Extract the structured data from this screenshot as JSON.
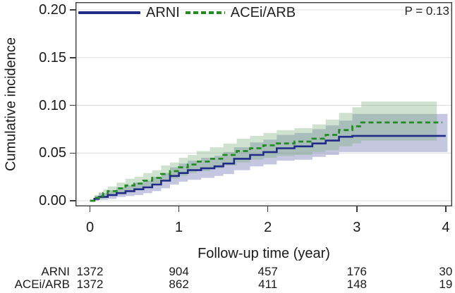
{
  "figure": {
    "p_value": "P = 0.13",
    "y_axis_title": "Cumulative incidence",
    "x_axis_title": "Follow-up time (year)"
  },
  "chart_data": {
    "type": "line",
    "subtype": "cumulative-incidence-step-curves-with-confidence-bands",
    "title": "",
    "xlabel": "Follow-up time (year)",
    "ylabel": "Cumulative incidence",
    "xlim": [
      0,
      4.07
    ],
    "ylim": [
      0,
      0.208
    ],
    "grid": "horizontal",
    "legend_position": "top-inside",
    "annotation": "P = 0.13",
    "x_ticks": [
      {
        "value": 0,
        "label": "0"
      },
      {
        "value": 1,
        "label": "1"
      },
      {
        "value": 2,
        "label": "2"
      },
      {
        "value": 3,
        "label": "3"
      },
      {
        "value": 4,
        "label": "4"
      }
    ],
    "y_ticks": [
      {
        "value": 0.2,
        "label": "0.20"
      },
      {
        "value": 0.15,
        "label": "0.15"
      },
      {
        "value": 0.1,
        "label": "0.10"
      },
      {
        "value": 0.05,
        "label": "0.05"
      },
      {
        "value": 0.0,
        "label": "0.00"
      }
    ],
    "colors": {
      "arni_line": "#202a87",
      "arni_band": "rgba(90,94,168,0.35)",
      "acei_arb_line": "#228b22",
      "acei_arb_band": "rgba(118,172,118,0.35)",
      "gridline": "#dcdcdc",
      "axis": "#3d3d3d"
    },
    "series": [
      {
        "name": "ARNI",
        "style": "solid",
        "color": "#202a87",
        "band_color": "rgba(90,94,168,0.35)",
        "line_end": 4.0,
        "band_end": 4.02,
        "points": [
          [
            0,
            0,
            0,
            0
          ],
          [
            0.05,
            0.002,
            0,
            0.005
          ],
          [
            0.1,
            0.004,
            0.001,
            0.008
          ],
          [
            0.2,
            0.006,
            0.002,
            0.011
          ],
          [
            0.3,
            0.008,
            0.004,
            0.014
          ],
          [
            0.4,
            0.01,
            0.005,
            0.016
          ],
          [
            0.5,
            0.012,
            0.006,
            0.019
          ],
          [
            0.6,
            0.014,
            0.008,
            0.021
          ],
          [
            0.7,
            0.017,
            0.01,
            0.025
          ],
          [
            0.8,
            0.021,
            0.013,
            0.029
          ],
          [
            0.9,
            0.026,
            0.017,
            0.035
          ],
          [
            1.0,
            0.029,
            0.02,
            0.039
          ],
          [
            1.1,
            0.032,
            0.022,
            0.042
          ],
          [
            1.25,
            0.034,
            0.024,
            0.045
          ],
          [
            1.4,
            0.036,
            0.026,
            0.047
          ],
          [
            1.5,
            0.039,
            0.028,
            0.051
          ],
          [
            1.62,
            0.044,
            0.032,
            0.056
          ],
          [
            1.8,
            0.048,
            0.036,
            0.061
          ],
          [
            1.95,
            0.051,
            0.038,
            0.064
          ],
          [
            2.1,
            0.055,
            0.042,
            0.069
          ],
          [
            2.3,
            0.057,
            0.043,
            0.071
          ],
          [
            2.5,
            0.06,
            0.046,
            0.075
          ],
          [
            2.65,
            0.063,
            0.048,
            0.079
          ],
          [
            2.8,
            0.067,
            0.051,
            0.084
          ],
          [
            2.95,
            0.068,
            0.051,
            0.091
          ]
        ]
      },
      {
        "name": "ACEi/ARB",
        "style": "dashed",
        "color": "#228b22",
        "band_color": "rgba(118,172,118,0.35)",
        "line_end": 3.96,
        "band_end": 3.9,
        "points": [
          [
            0,
            0,
            0,
            0
          ],
          [
            0.05,
            0.003,
            0.001,
            0.006
          ],
          [
            0.1,
            0.005,
            0.002,
            0.009
          ],
          [
            0.15,
            0.008,
            0.004,
            0.012
          ],
          [
            0.2,
            0.01,
            0.006,
            0.015
          ],
          [
            0.3,
            0.013,
            0.008,
            0.019
          ],
          [
            0.4,
            0.016,
            0.011,
            0.023
          ],
          [
            0.5,
            0.018,
            0.012,
            0.025
          ],
          [
            0.6,
            0.021,
            0.015,
            0.029
          ],
          [
            0.7,
            0.024,
            0.017,
            0.032
          ],
          [
            0.8,
            0.028,
            0.02,
            0.037
          ],
          [
            0.9,
            0.031,
            0.023,
            0.04
          ],
          [
            1.0,
            0.035,
            0.026,
            0.045
          ],
          [
            1.1,
            0.038,
            0.029,
            0.048
          ],
          [
            1.2,
            0.041,
            0.031,
            0.052
          ],
          [
            1.35,
            0.044,
            0.034,
            0.056
          ],
          [
            1.5,
            0.048,
            0.037,
            0.06
          ],
          [
            1.65,
            0.052,
            0.04,
            0.065
          ],
          [
            1.8,
            0.055,
            0.043,
            0.068
          ],
          [
            1.95,
            0.058,
            0.045,
            0.071
          ],
          [
            2.1,
            0.06,
            0.047,
            0.074
          ],
          [
            2.3,
            0.062,
            0.048,
            0.076
          ],
          [
            2.5,
            0.065,
            0.051,
            0.08
          ],
          [
            2.65,
            0.069,
            0.053,
            0.085
          ],
          [
            2.8,
            0.074,
            0.057,
            0.092
          ],
          [
            2.95,
            0.078,
            0.06,
            0.098
          ],
          [
            3.05,
            0.082,
            0.063,
            0.104
          ]
        ]
      }
    ],
    "risk_table": {
      "times": [
        0,
        1,
        2,
        3,
        4
      ],
      "rows": [
        {
          "label": "ARNI",
          "counts": [
            "1372",
            "904",
            "457",
            "176",
            "30"
          ]
        },
        {
          "label": "ACEi/ARB",
          "counts": [
            "1372",
            "862",
            "411",
            "148",
            "19"
          ]
        }
      ]
    }
  }
}
